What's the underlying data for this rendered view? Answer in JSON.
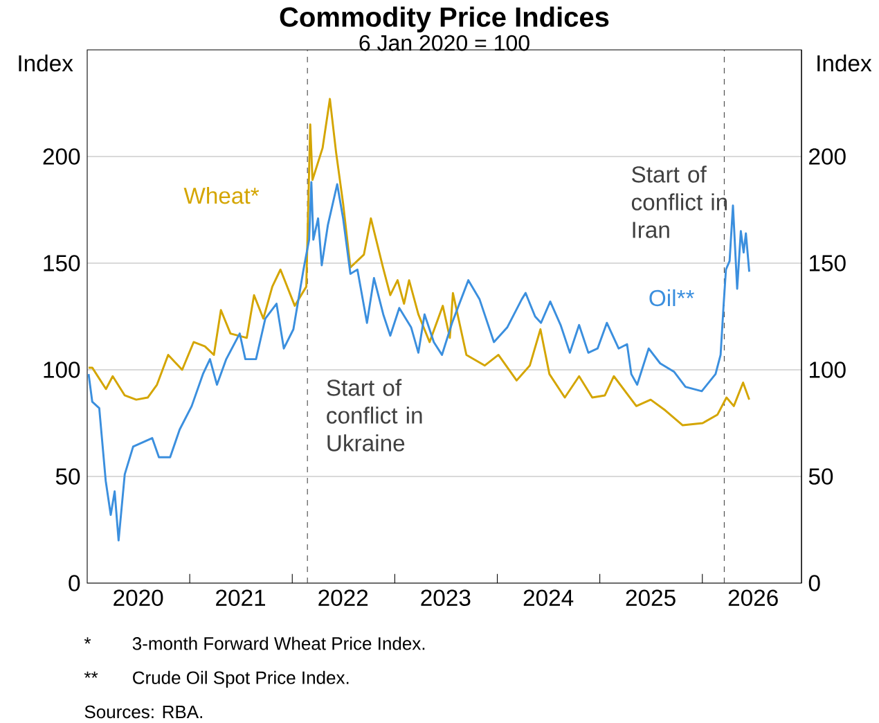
{
  "chart_data": {
    "type": "line",
    "title": "Commodity Price Indices",
    "subtitle": "6 Jan 2020 = 100",
    "ylabel": "Index",
    "y2label": "Index",
    "xlim": [
      "2020-01-01",
      "2026-12-20"
    ],
    "xticks": [
      {
        "value": "2021-01-01",
        "label": null
      },
      {
        "value": "2022-01-01",
        "label": null
      },
      {
        "value": "2023-01-01",
        "label": null
      },
      {
        "value": "2024-01-01",
        "label": null
      },
      {
        "value": "2025-01-01",
        "label": null
      },
      {
        "value": "2026-01-01",
        "label": null
      },
      {
        "value": "2020-07-01",
        "label": "2020"
      },
      {
        "value": "2021-07-01",
        "label": "2021"
      },
      {
        "value": "2022-07-01",
        "label": "2022"
      },
      {
        "value": "2023-07-01",
        "label": "2023"
      },
      {
        "value": "2024-07-01",
        "label": "2024"
      },
      {
        "value": "2025-07-01",
        "label": "2025"
      },
      {
        "value": "2026-07-01",
        "label": "2026"
      }
    ],
    "ylim": [
      0,
      250
    ],
    "yticks": [
      0,
      50,
      100,
      150,
      200
    ],
    "y2lim": [
      0,
      250
    ],
    "y2ticks": [
      0,
      50,
      100,
      150,
      200
    ],
    "grid": "y",
    "series": [
      {
        "name": "Wheat*",
        "color": "#d4a500",
        "x": [
          "2020-01-06",
          "2020-01-19",
          "2020-03-08",
          "2020-04-01",
          "2020-05-14",
          "2020-06-24",
          "2020-08-04",
          "2020-09-06",
          "2020-10-16",
          "2020-12-05",
          "2021-01-15",
          "2021-02-24",
          "2021-03-28",
          "2021-04-22",
          "2021-05-26",
          "2021-07-23",
          "2021-08-18",
          "2021-09-20",
          "2021-10-22",
          "2021-11-20",
          "2022-01-10",
          "2022-02-20",
          "2022-03-06",
          "2022-03-14",
          "2022-04-19",
          "2022-05-15",
          "2022-06-06",
          "2022-07-01",
          "2022-07-27",
          "2022-09-13",
          "2022-10-08",
          "2022-11-20",
          "2022-12-16",
          "2023-01-11",
          "2023-02-03",
          "2023-02-21",
          "2023-03-26",
          "2023-05-05",
          "2023-06-21",
          "2023-07-16",
          "2023-07-27",
          "2023-09-13",
          "2023-11-17",
          "2024-01-05",
          "2024-03-10",
          "2024-04-26",
          "2024-06-03",
          "2024-07-05",
          "2024-08-29",
          "2024-10-19",
          "2024-12-05",
          "2025-01-19",
          "2025-02-20",
          "2025-05-11",
          "2025-07-01",
          "2025-08-22",
          "2025-10-23",
          "2026-01-02",
          "2026-02-24",
          "2026-03-28",
          "2026-04-23",
          "2026-05-26",
          "2026-06-17"
        ],
        "values": [
          101,
          101,
          91,
          97,
          88,
          86,
          87,
          93,
          107,
          100,
          113,
          111,
          107,
          128,
          117,
          115,
          135,
          124,
          139,
          147,
          130,
          139,
          215,
          189,
          204,
          227,
          202,
          178,
          148,
          154,
          171,
          148,
          135,
          142,
          131,
          142,
          126,
          113,
          130,
          115,
          136,
          107,
          102,
          107,
          95,
          102,
          119,
          98,
          87,
          97,
          87,
          88,
          97,
          83,
          86,
          81,
          74,
          75,
          79,
          87,
          83,
          94,
          86
        ]
      },
      {
        "name": "Oil**",
        "color": "#3b8fde",
        "x": [
          "2020-01-06",
          "2020-01-19",
          "2020-02-13",
          "2020-03-07",
          "2020-03-25",
          "2020-04-08",
          "2020-04-22",
          "2020-05-14",
          "2020-06-13",
          "2020-08-20",
          "2020-09-13",
          "2020-10-23",
          "2020-11-26",
          "2021-01-08",
          "2021-02-17",
          "2021-03-14",
          "2021-04-08",
          "2021-05-11",
          "2021-06-28",
          "2021-07-18",
          "2021-08-25",
          "2021-09-27",
          "2021-11-06",
          "2021-12-02",
          "2022-01-05",
          "2022-02-10",
          "2022-03-02",
          "2022-03-10",
          "2022-03-17",
          "2022-04-03",
          "2022-04-16",
          "2022-05-08",
          "2022-06-10",
          "2022-07-01",
          "2022-07-27",
          "2022-08-21",
          "2022-09-24",
          "2022-10-19",
          "2022-11-21",
          "2022-12-16",
          "2023-01-17",
          "2023-02-28",
          "2023-03-26",
          "2023-04-17",
          "2023-05-20",
          "2023-06-18",
          "2023-07-24",
          "2023-09-20",
          "2023-10-30",
          "2023-12-20",
          "2024-02-06",
          "2024-03-28",
          "2024-04-11",
          "2024-05-15",
          "2024-06-05",
          "2024-07-08",
          "2024-08-14",
          "2024-09-16",
          "2024-10-19",
          "2024-11-21",
          "2024-12-24",
          "2025-01-26",
          "2025-03-09",
          "2025-04-08",
          "2025-04-23",
          "2025-05-14",
          "2025-06-24",
          "2025-08-04",
          "2025-09-23",
          "2025-11-02",
          "2025-12-30",
          "2026-02-17",
          "2026-03-07",
          "2026-03-18",
          "2026-03-26",
          "2026-04-08",
          "2026-04-20",
          "2026-05-05",
          "2026-05-18",
          "2026-05-28",
          "2026-06-05",
          "2026-06-17"
        ],
        "values": [
          98,
          85,
          82,
          48,
          32,
          43,
          20,
          51,
          64,
          68,
          59,
          59,
          72,
          83,
          98,
          105,
          93,
          105,
          117,
          105,
          105,
          124,
          131,
          110,
          119,
          147,
          161,
          188,
          161,
          171,
          149,
          168,
          187,
          171,
          145,
          147,
          122,
          143,
          126,
          116,
          129,
          120,
          108,
          126,
          113,
          107,
          122,
          142,
          133,
          113,
          120,
          133,
          136,
          125,
          122,
          132,
          121,
          108,
          121,
          108,
          110,
          122,
          110,
          112,
          98,
          93,
          110,
          103,
          99,
          92,
          90,
          98,
          107,
          131,
          147,
          151,
          177,
          138,
          165,
          155,
          164,
          146
        ]
      }
    ],
    "ref_lines": [
      {
        "axis": "x",
        "value": "2022-02-24",
        "label": "Start of conflict in Ukraine",
        "color": "#404040",
        "line_style": "dashed"
      },
      {
        "axis": "x",
        "value": "2026-03-20",
        "label": "Start of conflict in Iran",
        "color": "#404040",
        "line_style": "dashed"
      }
    ],
    "annotations": [
      "*",
      "3-month Forward Wheat Price Index.",
      "**",
      "Crude Oil Spot Price Index.",
      "Sources: RBA."
    ]
  }
}
